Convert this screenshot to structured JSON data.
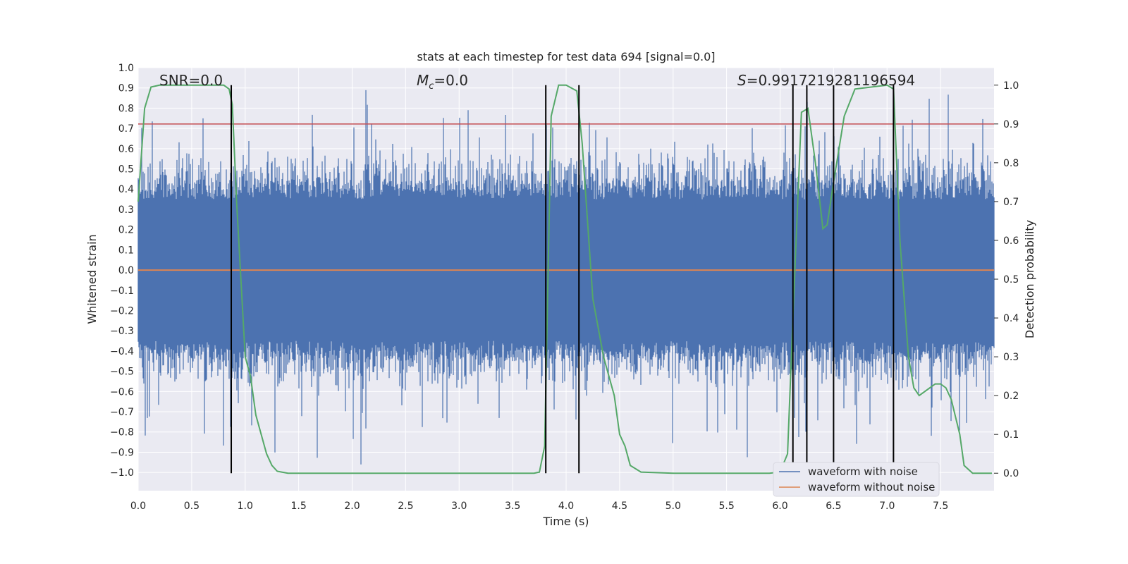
{
  "chart_data": {
    "type": "line",
    "title": "stats at each timestep for test data 694 [signal=0.0]",
    "xlabel": "Time (s)",
    "ylabel": "Whitened strain",
    "y2label": "Detection probability",
    "xlim": [
      0.0,
      8.0
    ],
    "ylim": [
      -1.09,
      1.0
    ],
    "y2lim": [
      -0.045,
      1.045
    ],
    "xticks": [
      "0.0",
      "0.5",
      "1.0",
      "1.5",
      "2.0",
      "2.5",
      "3.0",
      "3.5",
      "4.0",
      "4.5",
      "5.0",
      "5.5",
      "6.0",
      "6.5",
      "7.0",
      "7.5"
    ],
    "yticks": [
      "1.0",
      "0.9",
      "0.8",
      "0.7",
      "0.6",
      "0.5",
      "0.4",
      "0.3",
      "0.2",
      "0.1",
      "0.0",
      "−0.1",
      "−0.2",
      "−0.3",
      "−0.4",
      "−0.5",
      "−0.6",
      "−0.7",
      "−0.8",
      "−0.9",
      "−1.0"
    ],
    "y2ticks": [
      "1.0",
      "0.9",
      "0.8",
      "0.7",
      "0.6",
      "0.5",
      "0.4",
      "0.3",
      "0.2",
      "0.1",
      "0.0"
    ],
    "annotations": {
      "snr": "SNR=0.0",
      "mc_symbol": "M",
      "mc_sub": "c",
      "mc_value": "=0.0",
      "s_symbol": "S",
      "s_value": "=0.9917219281196594"
    },
    "series": [
      {
        "name": "waveform with noise",
        "color": "#4c72b0",
        "band_low": -0.45,
        "band_high": 0.45,
        "approx_range": [
          -1.0,
          0.91
        ]
      },
      {
        "name": "waveform without noise",
        "color": "#dd8452",
        "values_constant": 0.0
      },
      {
        "name": "detection probability",
        "color": "#55a868",
        "axis": "right",
        "x": [
          0.0,
          0.06,
          0.12,
          0.2,
          0.4,
          0.6,
          0.8,
          0.85,
          0.88,
          0.92,
          1.0,
          1.05,
          1.1,
          1.2,
          1.25,
          1.3,
          1.4,
          1.6,
          2.0,
          2.5,
          3.0,
          3.5,
          3.7,
          3.75,
          3.8,
          3.86,
          3.93,
          4.0,
          4.1,
          4.15,
          4.25,
          4.35,
          4.45,
          4.5,
          4.55,
          4.6,
          4.7,
          5.0,
          5.5,
          5.9,
          6.0,
          6.07,
          6.12,
          6.2,
          6.26,
          6.33,
          6.4,
          6.44,
          6.5,
          6.6,
          6.7,
          7.0,
          7.06,
          7.12,
          7.2,
          7.25,
          7.3,
          7.4,
          7.45,
          7.5,
          7.55,
          7.6,
          7.68,
          7.72,
          7.8,
          7.98
        ],
        "values": [
          0.7,
          0.94,
          0.995,
          1.0,
          1.0,
          1.0,
          1.0,
          0.99,
          0.95,
          0.7,
          0.3,
          0.25,
          0.15,
          0.05,
          0.02,
          0.005,
          0.0,
          0.0,
          0.0,
          0.0,
          0.0,
          0.0,
          0.0,
          0.003,
          0.07,
          0.92,
          1.0,
          1.0,
          0.985,
          0.85,
          0.45,
          0.3,
          0.2,
          0.1,
          0.07,
          0.02,
          0.003,
          0.0,
          0.0,
          0.0,
          0.003,
          0.05,
          0.4,
          0.93,
          0.94,
          0.8,
          0.63,
          0.64,
          0.75,
          0.92,
          0.99,
          1.0,
          0.99,
          0.6,
          0.3,
          0.22,
          0.2,
          0.22,
          0.23,
          0.23,
          0.22,
          0.19,
          0.1,
          0.02,
          0.0,
          0.0
        ]
      }
    ],
    "threshold": {
      "axis": "right",
      "value": 0.9,
      "color": "#c44e52"
    },
    "vlines_x": [
      0.87,
      3.81,
      4.12,
      6.12,
      6.25,
      6.5,
      7.06
    ],
    "legend": {
      "position": "lower-right",
      "entries": [
        "waveform with noise",
        "waveform without noise"
      ]
    }
  }
}
